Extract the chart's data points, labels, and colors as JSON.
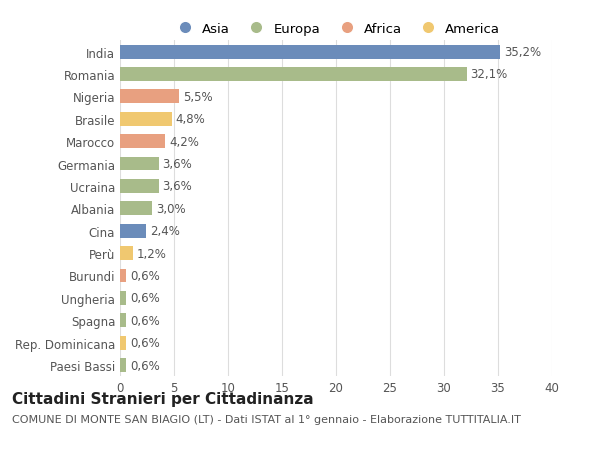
{
  "categories": [
    "India",
    "Romania",
    "Nigeria",
    "Brasile",
    "Marocco",
    "Germania",
    "Ucraina",
    "Albania",
    "Cina",
    "Perù",
    "Burundi",
    "Ungheria",
    "Spagna",
    "Rep. Dominicana",
    "Paesi Bassi"
  ],
  "values": [
    35.2,
    32.1,
    5.5,
    4.8,
    4.2,
    3.6,
    3.6,
    3.0,
    2.4,
    1.2,
    0.6,
    0.6,
    0.6,
    0.6,
    0.6
  ],
  "labels": [
    "35,2%",
    "32,1%",
    "5,5%",
    "4,8%",
    "4,2%",
    "3,6%",
    "3,6%",
    "3,0%",
    "2,4%",
    "1,2%",
    "0,6%",
    "0,6%",
    "0,6%",
    "0,6%",
    "0,6%"
  ],
  "continents": [
    "Asia",
    "Europa",
    "Africa",
    "America",
    "Africa",
    "Europa",
    "Europa",
    "Europa",
    "Asia",
    "America",
    "Africa",
    "Europa",
    "Europa",
    "America",
    "Europa"
  ],
  "continent_colors": {
    "Asia": "#6b8cba",
    "Europa": "#a8bb8a",
    "Africa": "#e8a080",
    "America": "#f0c870"
  },
  "legend_order": [
    "Asia",
    "Europa",
    "Africa",
    "America"
  ],
  "title": "Cittadini Stranieri per Cittadinanza",
  "subtitle": "COMUNE DI MONTE SAN BIAGIO (LT) - Dati ISTAT al 1° gennaio - Elaborazione TUTTITALIA.IT",
  "xlim": [
    0,
    40
  ],
  "xticks": [
    0,
    5,
    10,
    15,
    20,
    25,
    30,
    35,
    40
  ],
  "background_color": "#ffffff",
  "grid_color": "#dddddd",
  "bar_height": 0.62,
  "title_fontsize": 11,
  "subtitle_fontsize": 8,
  "tick_fontsize": 8.5,
  "label_fontsize": 8.5,
  "legend_fontsize": 9.5
}
